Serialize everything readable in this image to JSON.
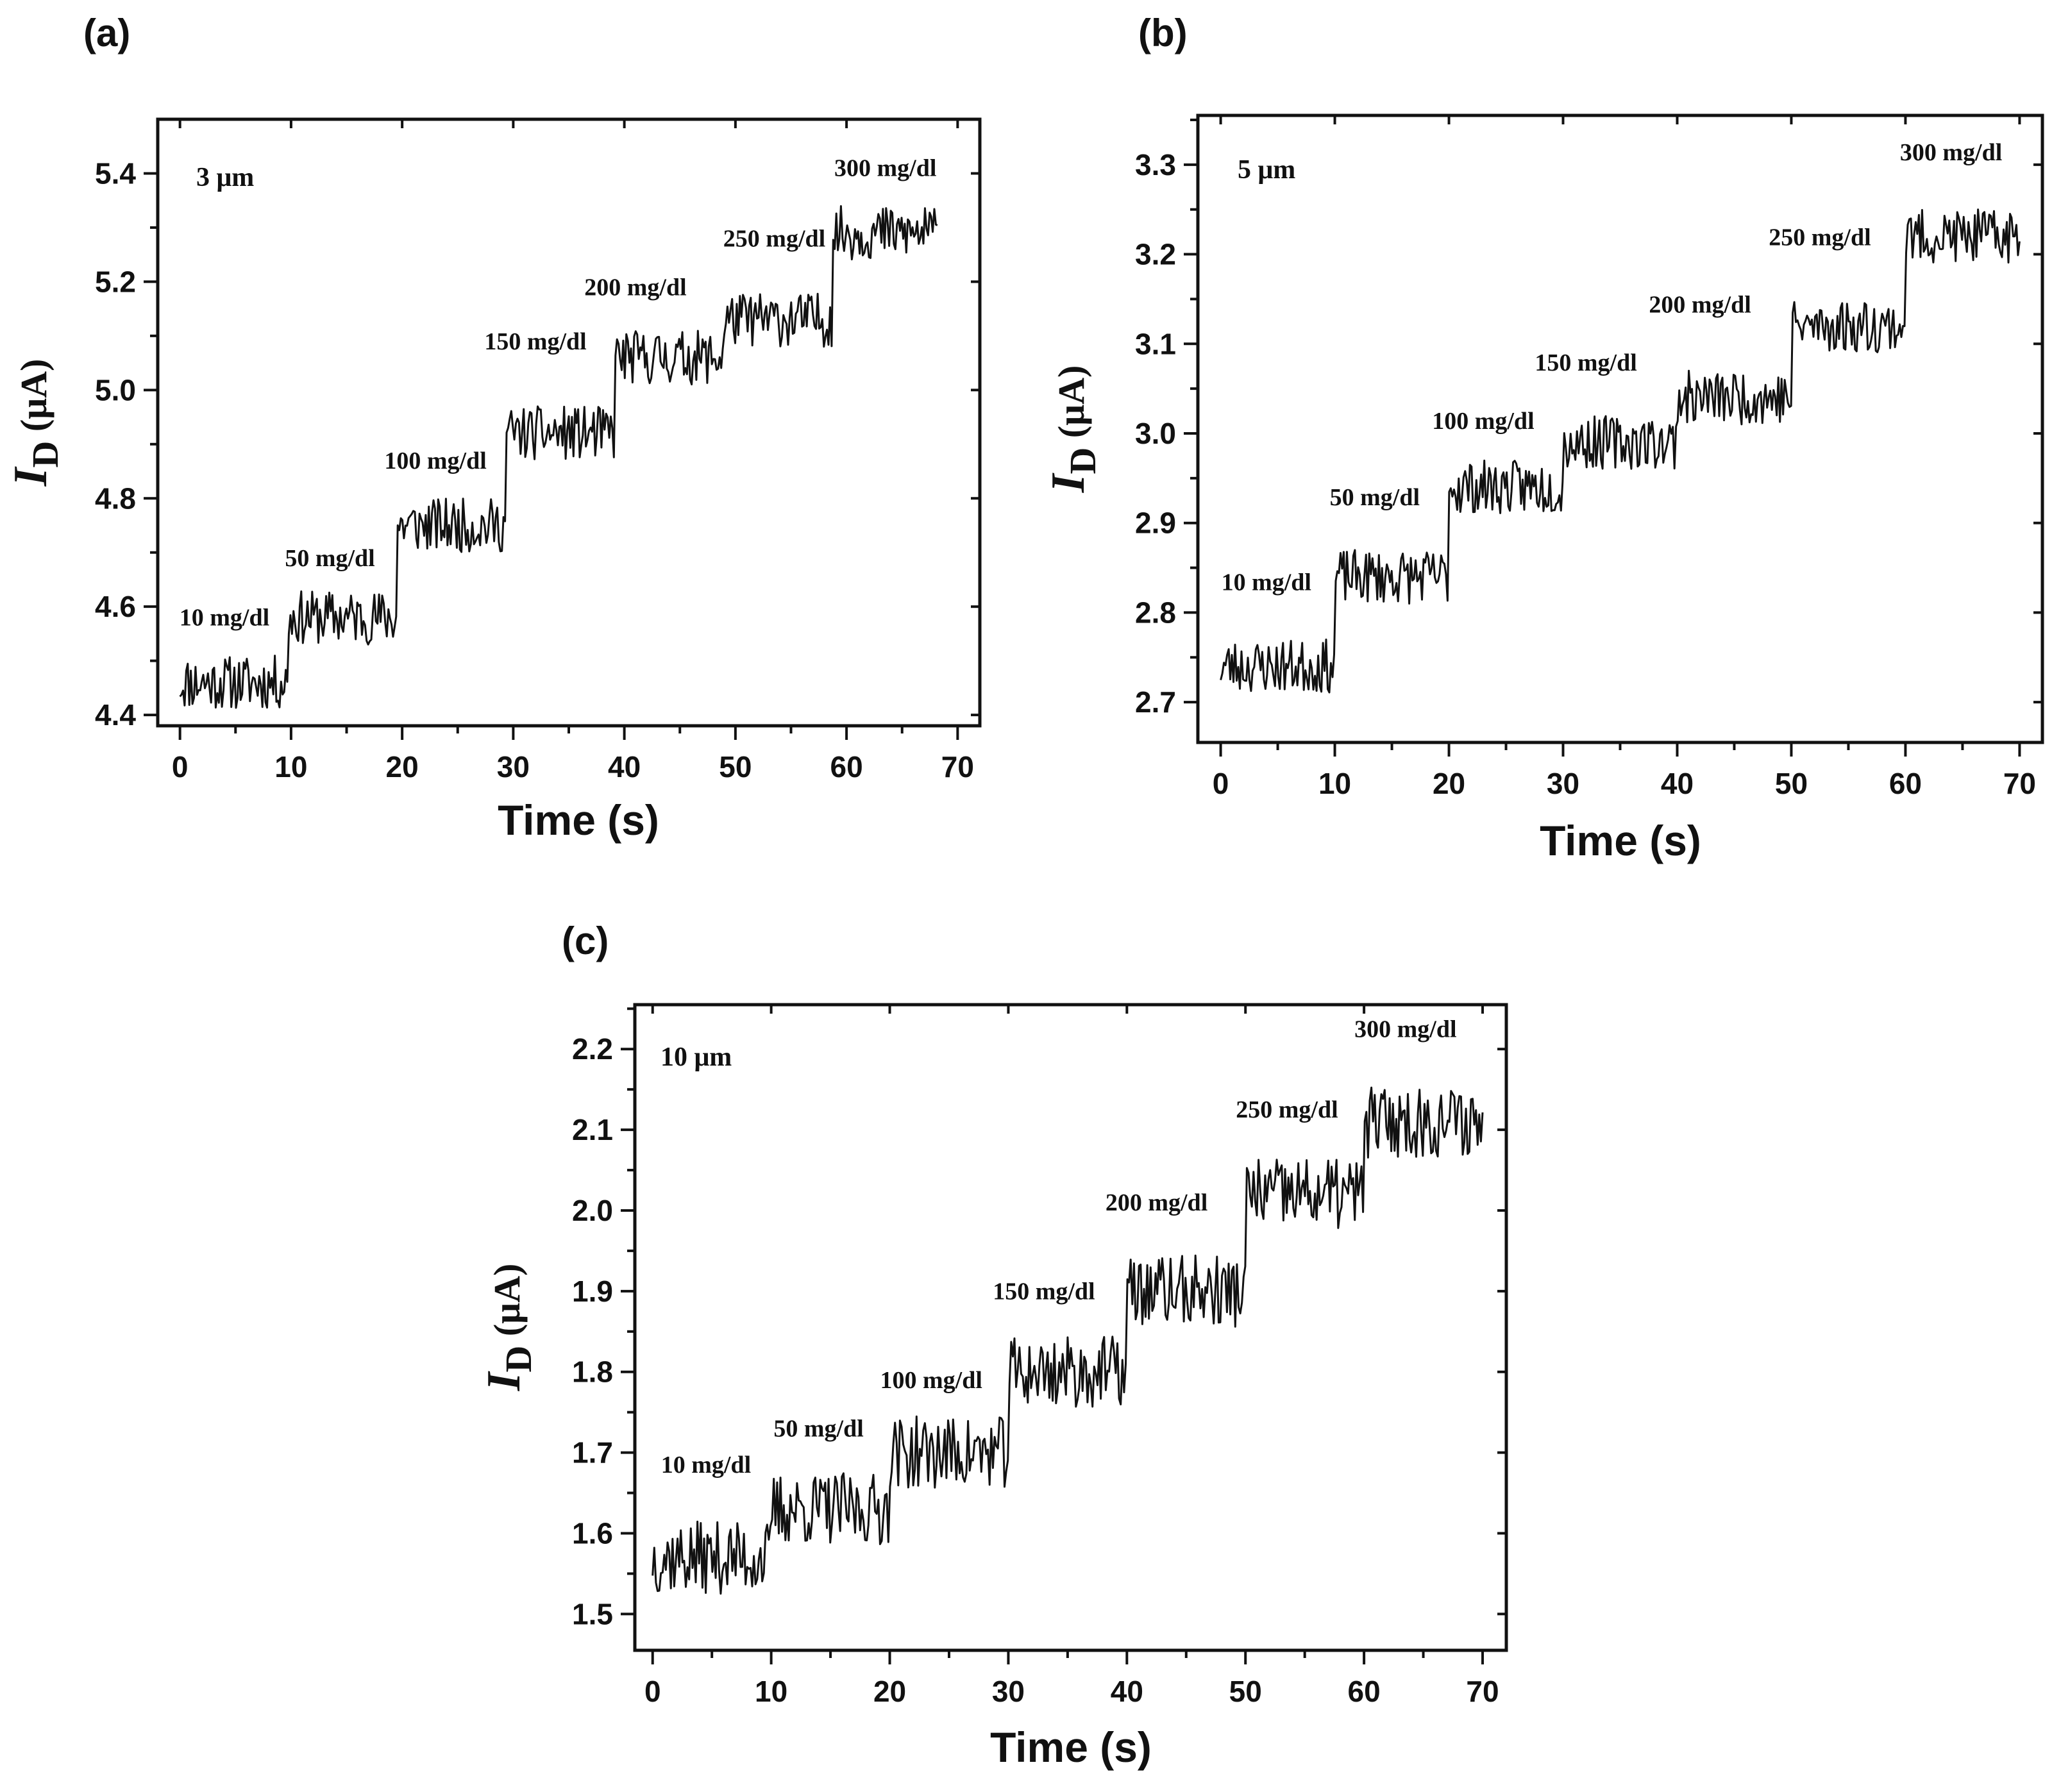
{
  "chart_data": [
    {
      "type": "line",
      "panel_label": "(a)",
      "sample_label": "3 μm",
      "xlabel": "Time (s)",
      "ylabel": {
        "main": "I",
        "sub": "D",
        "unit": " (μA)"
      },
      "xlim": [
        -2,
        72
      ],
      "ylim": [
        4.38,
        5.5
      ],
      "xticks": [
        0,
        10,
        20,
        30,
        40,
        50,
        60,
        70
      ],
      "xtick_labels": [
        "0",
        "10",
        "20",
        "30",
        "40",
        "50",
        "60",
        "70"
      ],
      "yticks": [
        4.4,
        4.6,
        4.8,
        5.0,
        5.2,
        5.4
      ],
      "ytick_labels": [
        "4.4",
        "4.6",
        "4.8",
        "5.0",
        "5.2",
        "5.4"
      ],
      "step_width_s": 9.8,
      "trace_end_s": 68.3,
      "noise_amplitude": 0.05,
      "step_levels": [
        4.46,
        4.58,
        4.75,
        4.92,
        5.06,
        5.13,
        5.29
      ],
      "series": [
        {
          "name": "I_D"
        }
      ],
      "annotations": [
        {
          "text": "10 mg/dl",
          "x": 4,
          "y": 4.565
        },
        {
          "text": "50 mg/dl",
          "x": 13.5,
          "y": 4.675
        },
        {
          "text": "100 mg/dl",
          "x": 23,
          "y": 4.855
        },
        {
          "text": "150 mg/dl",
          "x": 32,
          "y": 5.075
        },
        {
          "text": "200 mg/dl",
          "x": 41,
          "y": 5.175
        },
        {
          "text": "250 mg/dl",
          "x": 53.5,
          "y": 5.265
        },
        {
          "text": "300 mg/dl",
          "x": 63.5,
          "y": 5.395
        }
      ]
    },
    {
      "type": "line",
      "panel_label": "(b)",
      "sample_label": "5 μm",
      "xlabel": "Time (s)",
      "ylabel": {
        "main": "I",
        "sub": "D",
        "unit": " (μA)"
      },
      "xlim": [
        -2,
        72
      ],
      "ylim": [
        2.655,
        3.355
      ],
      "xticks": [
        0,
        10,
        20,
        30,
        40,
        50,
        60,
        70
      ],
      "xtick_labels": [
        "0",
        "10",
        "20",
        "30",
        "40",
        "50",
        "60",
        "70"
      ],
      "yticks": [
        2.7,
        2.8,
        2.9,
        3.0,
        3.1,
        3.2,
        3.3
      ],
      "ytick_labels": [
        "2.7",
        "2.8",
        "2.9",
        "3.0",
        "3.1",
        "3.2",
        "3.3"
      ],
      "step_width_s": 10,
      "trace_end_s": 70,
      "noise_amplitude": 0.03,
      "step_levels": [
        2.74,
        2.84,
        2.94,
        2.99,
        3.04,
        3.12,
        3.22
      ],
      "series": [
        {
          "name": "I_D"
        }
      ],
      "annotations": [
        {
          "text": "10 mg/dl",
          "x": 4,
          "y": 2.825
        },
        {
          "text": "50 mg/dl",
          "x": 13.5,
          "y": 2.92
        },
        {
          "text": "100 mg/dl",
          "x": 23,
          "y": 3.005
        },
        {
          "text": "150 mg/dl",
          "x": 32,
          "y": 3.07
        },
        {
          "text": "200 mg/dl",
          "x": 42,
          "y": 3.135
        },
        {
          "text": "250 mg/dl",
          "x": 52.5,
          "y": 3.21
        },
        {
          "text": "300 mg/dl",
          "x": 64,
          "y": 3.305
        }
      ]
    },
    {
      "type": "line",
      "panel_label": "(c)",
      "sample_label": "10 μm",
      "xlabel": "Time (s)",
      "ylabel": {
        "main": "I",
        "sub": "D",
        "unit": " (μA)"
      },
      "xlim": [
        -1.5,
        72
      ],
      "ylim": [
        1.455,
        2.255
      ],
      "xticks": [
        0,
        10,
        20,
        30,
        40,
        50,
        60,
        70
      ],
      "xtick_labels": [
        "0",
        "10",
        "20",
        "30",
        "40",
        "50",
        "60",
        "70"
      ],
      "yticks": [
        1.5,
        1.6,
        1.7,
        1.8,
        1.9,
        2.0,
        2.1,
        2.2
      ],
      "ytick_labels": [
        "1.5",
        "1.6",
        "1.7",
        "1.8",
        "1.9",
        "2.0",
        "2.1",
        "2.2"
      ],
      "step_width_s": 10,
      "trace_end_s": 70,
      "noise_amplitude": 0.045,
      "step_levels": [
        1.57,
        1.63,
        1.7,
        1.8,
        1.9,
        2.02,
        2.11
      ],
      "series": [
        {
          "name": "I_D"
        }
      ],
      "annotations": [
        {
          "text": "10 mg/dl",
          "x": 4.5,
          "y": 1.675
        },
        {
          "text": "50 mg/dl",
          "x": 14,
          "y": 1.72
        },
        {
          "text": "100 mg/dl",
          "x": 23.5,
          "y": 1.78
        },
        {
          "text": "150 mg/dl",
          "x": 33,
          "y": 1.89
        },
        {
          "text": "200 mg/dl",
          "x": 42.5,
          "y": 2.0
        },
        {
          "text": "250 mg/dl",
          "x": 53.5,
          "y": 2.115
        },
        {
          "text": "300 mg/dl",
          "x": 63.5,
          "y": 2.215
        }
      ]
    }
  ]
}
